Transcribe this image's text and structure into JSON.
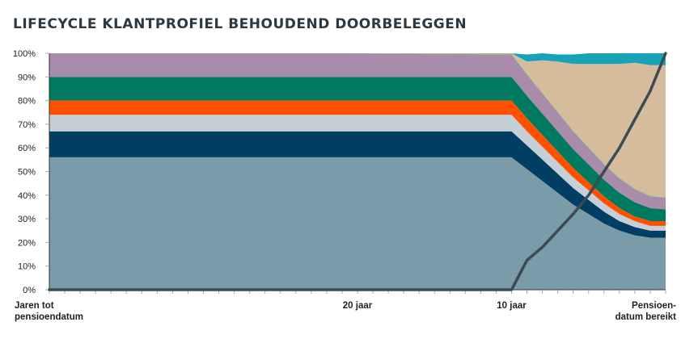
{
  "chart_data": {
    "type": "area",
    "title": "LIFECYCLE KLANTPROFIEL BEHOUDEND DOORBELEGGEN",
    "ylim": [
      0,
      100
    ],
    "y_ticks": [
      "0%",
      "10%",
      "20%",
      "30%",
      "40%",
      "50%",
      "60%",
      "70%",
      "80%",
      "90%",
      "100%"
    ],
    "x": [
      40,
      20,
      10,
      9,
      8,
      7,
      6,
      5,
      4,
      3,
      2,
      1,
      0
    ],
    "x_labels": [
      {
        "x": 40,
        "lines": [
          "Jaren tot",
          "pensioendatum"
        ],
        "align": "start"
      },
      {
        "x": 20,
        "lines": [
          "20 jaar"
        ],
        "align": "middle"
      },
      {
        "x": 10,
        "lines": [
          "10 jaar"
        ],
        "align": "middle"
      },
      {
        "x": 0,
        "lines": [
          "Pensioen-",
          "datum bereikt"
        ],
        "align": "end"
      }
    ],
    "series": [
      {
        "color": "#7a9ba8",
        "values": [
          56,
          56,
          56,
          51,
          46,
          41,
          36,
          32,
          28,
          25,
          23,
          22,
          22
        ]
      },
      {
        "color": "#003e63",
        "values": [
          11,
          11,
          11,
          10,
          9,
          8,
          7,
          6,
          5,
          4,
          3.5,
          3,
          3
        ]
      },
      {
        "color": "#c5cfd8",
        "values": [
          7,
          7,
          7,
          6,
          5.5,
          5,
          4.5,
          4,
          3.5,
          3,
          2.5,
          2,
          2
        ]
      },
      {
        "color": "#ff5000",
        "values": [
          6,
          6,
          6,
          5.5,
          5,
          4.5,
          4,
          3.5,
          3,
          2.5,
          2,
          2,
          2
        ]
      },
      {
        "color": "#007a5e",
        "values": [
          10,
          10,
          10,
          9.5,
          9,
          8.5,
          8,
          7.5,
          7,
          6.5,
          6,
          5.5,
          5
        ]
      },
      {
        "color": "#a98bab",
        "values": [
          10,
          10,
          9.5,
          9,
          8.5,
          8,
          7.5,
          7,
          6.5,
          6,
          5.5,
          5,
          5
        ]
      },
      {
        "color": "#9cc67a",
        "values": [
          0,
          0,
          0.5,
          0.5,
          0.5,
          0.5,
          0.5,
          0.5,
          0.5,
          0.5,
          0.5,
          0.5,
          0
        ]
      },
      {
        "color": "#d4bc9d",
        "values": [
          0,
          0,
          0,
          5,
          13.5,
          21,
          28,
          35,
          42,
          48,
          53,
          55,
          56
        ]
      },
      {
        "color": "#17a2b8",
        "values": [
          0,
          0,
          0,
          3,
          3,
          3,
          4,
          4.5,
          4.5,
          4.5,
          4,
          5,
          5
        ]
      }
    ],
    "line": {
      "color": "#3b4a53",
      "values": [
        0,
        0,
        0,
        12.5,
        18,
        25,
        32,
        40,
        50,
        60,
        72,
        84,
        100
      ]
    },
    "legend": "none",
    "grid": false
  }
}
